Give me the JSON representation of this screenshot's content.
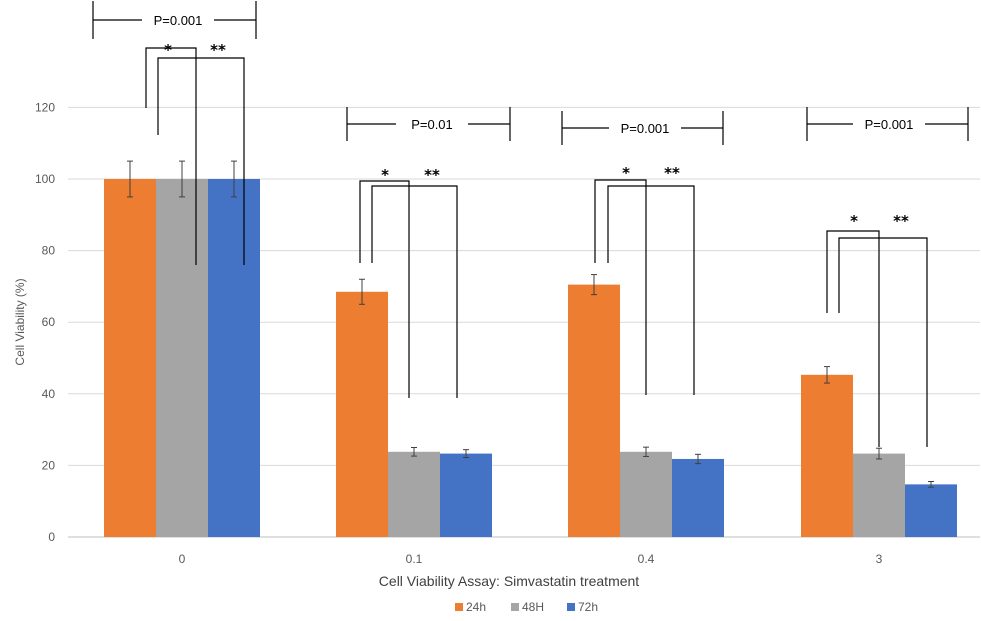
{
  "chart_data": {
    "type": "bar",
    "xlabel": "Cell Viability Assay: Simvastatin treatment",
    "ylabel": "Cell Viability (%)",
    "ylim": [
      0,
      130
    ],
    "yticks": [
      0,
      20,
      40,
      60,
      80,
      100,
      120
    ],
    "grid": true,
    "legend_position": "bottom",
    "categories": [
      "0",
      "0.1",
      "0.4",
      "3"
    ],
    "series": [
      {
        "name": "24h",
        "color": "#ED7D31",
        "values": [
          100,
          68.5,
          70.5,
          45.3
        ],
        "errors": [
          5,
          3.5,
          2.8,
          2.3
        ]
      },
      {
        "name": "48H",
        "color": "#A5A5A5",
        "values": [
          100,
          23.8,
          23.8,
          23.3
        ],
        "errors": [
          5,
          1.2,
          1.3,
          1.5
        ]
      },
      {
        "name": "72h",
        "color": "#4472C4",
        "values": [
          100,
          23.3,
          21.8,
          14.7
        ],
        "errors": [
          5,
          1.1,
          1.3,
          0.8
        ]
      }
    ],
    "annotations": {
      "p_values": [
        "P=0.001",
        "P=0.01",
        "P=0.001",
        "P=0.001"
      ],
      "star_single": "*",
      "star_double": "**"
    }
  }
}
